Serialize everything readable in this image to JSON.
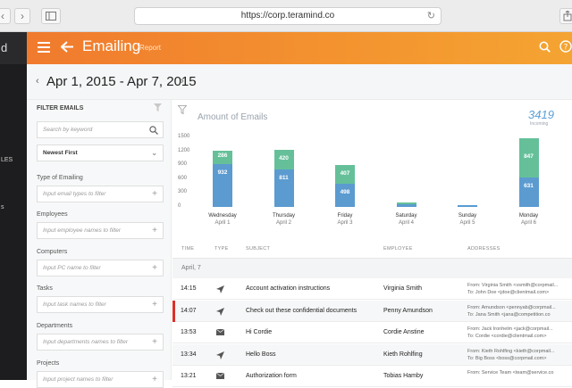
{
  "browser": {
    "url": "https://corp.teramind.co",
    "back_icon": "chevron-left",
    "forward_icon": "chevron-right",
    "sidebar_icon": "sidebar",
    "reload_icon": "reload",
    "share_icon": "share"
  },
  "sidebar": {
    "logo_fragment": "d",
    "items": [
      "LES",
      "s"
    ]
  },
  "header": {
    "title": "Emailing",
    "subtitle": "Report",
    "menu_icon": "hamburger",
    "back_icon": "arrow-left",
    "search_icon": "search",
    "help_icon": "help"
  },
  "date_range": {
    "label": "Apr 1, 2015 - Apr 7, 2015"
  },
  "filters": {
    "title": "FILTER EMAILS",
    "search_placeholder": "Search by keyword",
    "sort_value": "Newest First",
    "groups": [
      {
        "label": "Type of Emailing",
        "placeholder": "Input email types to filter"
      },
      {
        "label": "Employees",
        "placeholder": "Input employee names to filter"
      },
      {
        "label": "Computers",
        "placeholder": "Input PC name to filter"
      },
      {
        "label": "Tasks",
        "placeholder": "Input task names to filter"
      },
      {
        "label": "Departments",
        "placeholder": "Input departments names to filter"
      },
      {
        "label": "Projects",
        "placeholder": "Input project names to filter"
      }
    ]
  },
  "chart": {
    "title": "Amount of Emails",
    "total_value": "3419",
    "total_label": "Incoming"
  },
  "chart_data": {
    "type": "bar",
    "title": "Amount of Emails",
    "y_ticks": [
      "1500",
      "1200",
      "900",
      "600",
      "300",
      "0"
    ],
    "ylim": [
      0,
      1500
    ],
    "categories": [
      {
        "day": "Wednesday",
        "date": "April 1"
      },
      {
        "day": "Thursday",
        "date": "April 2"
      },
      {
        "day": "Friday",
        "date": "April 3"
      },
      {
        "day": "Saturday",
        "date": "April 4"
      },
      {
        "day": "Sunday",
        "date": "April 5"
      },
      {
        "day": "Monday",
        "date": "April 6"
      }
    ],
    "series": [
      {
        "color": "#5b9bd0",
        "values": [
          932,
          811,
          498,
          60,
          40,
          631
        ],
        "labels": [
          "932",
          "811",
          "498",
          "",
          "",
          "631"
        ]
      },
      {
        "color": "#65c09a",
        "values": [
          286,
          420,
          407,
          40,
          0,
          847
        ],
        "labels": [
          "286",
          "420",
          "407",
          "",
          "",
          "847"
        ]
      }
    ]
  },
  "table": {
    "columns": [
      "TIME",
      "TYPE",
      "SUBJECT",
      "EMPLOYEE",
      "ADDRESSES"
    ],
    "group_label": "April, 7",
    "rows": [
      {
        "time": "14:15",
        "type": "send-icon",
        "subject": "Account activation instructions",
        "employee": "Virginia Smith",
        "from": "From:  Virginia Smith <vsmith@corpmail...",
        "to": "To:     John Doe <jdoe@clientmail.com>",
        "flagged": false
      },
      {
        "time": "14:07",
        "type": "send-icon",
        "subject": "Check out these confidential documents",
        "employee": "Penny Amundson",
        "from": "From:  Amundson <pennyab@corpmail...",
        "to": "To:     Jana Smith <jana@competition.co",
        "flagged": true
      },
      {
        "time": "13:53",
        "type": "envelope-icon",
        "subject": "Hi Cordie",
        "employee": "Cordie Anstine",
        "from": "From:  Jack Ironhelm <jack@corpmail...",
        "to": "To:     Cordie <cordie@clientmail.com>",
        "flagged": false
      },
      {
        "time": "13:34",
        "type": "send-icon",
        "subject": "Hello Boss",
        "employee": "Kieth Rohlfing",
        "from": "From:  Kieth Rohlfing <kieth@corpmail...",
        "to": "To:     Big Boss <boss@corpmail.com>",
        "flagged": false
      },
      {
        "time": "13:21",
        "type": "envelope-icon",
        "subject": "Authorization form",
        "employee": "Tobias Hamby",
        "from": "From:  Service Team <team@service.co",
        "to": "",
        "flagged": false
      }
    ]
  }
}
